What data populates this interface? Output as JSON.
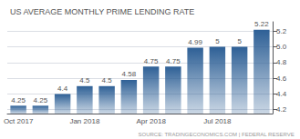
{
  "chart_data": {
    "type": "bar",
    "title": "US AVERAGE MONTHLY PRIME LENDING RATE",
    "annotations": [
      "SOURCE: TRADINGECONOMICS.COM | FEDERAL RESERVE"
    ],
    "categories": [
      "Oct 2017",
      null,
      null,
      "Jan 2018",
      null,
      null,
      "Apr 2018",
      null,
      null,
      "Jul 2018",
      null,
      null
    ],
    "values": [
      4.25,
      4.25,
      4.4,
      4.5,
      4.5,
      4.58,
      4.75,
      4.75,
      4.99,
      5.0,
      5.0,
      5.22
    ],
    "color": "#2e6096",
    "ylim": [
      4.15,
      5.32
    ],
    "yticks": [
      4.2,
      4.4,
      4.6,
      4.8,
      {
        "value": 5.0,
        "label": "5.0"
      },
      5.2
    ],
    "grid": true,
    "data_labels": true
  }
}
